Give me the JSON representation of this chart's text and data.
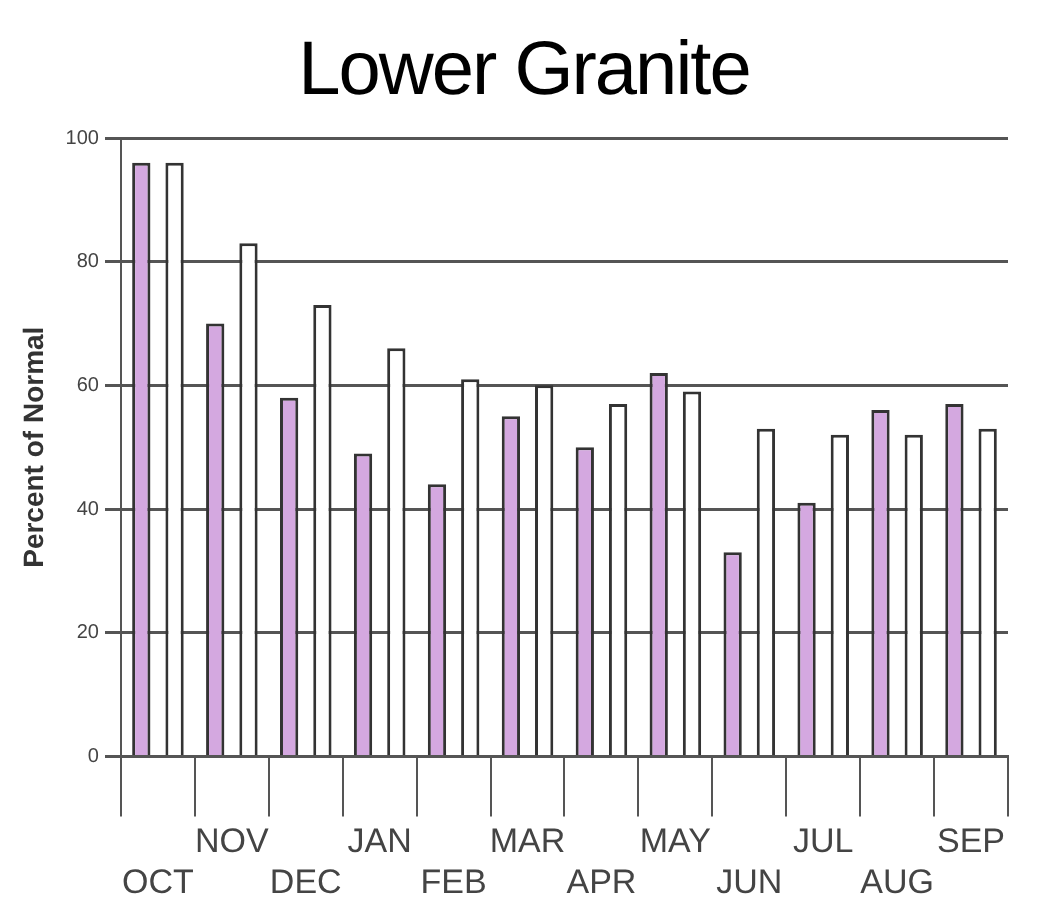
{
  "chart_data": {
    "type": "bar",
    "title": "Lower Granite",
    "ylabel": "Percent of Normal",
    "categories": [
      "OCT",
      "NOV",
      "DEC",
      "JAN",
      "FEB",
      "MAR",
      "APR",
      "MAY",
      "JUN",
      "JUL",
      "AUG",
      "SEP"
    ],
    "series": [
      {
        "color": "#d4a8e0",
        "values": [
          96,
          70,
          58,
          49,
          44,
          55,
          50,
          62,
          33,
          41,
          56,
          57
        ]
      },
      {
        "color": "#ffffff",
        "values": [
          96,
          83,
          73,
          66,
          61,
          60,
          57,
          59,
          53,
          52,
          52,
          53
        ]
      }
    ],
    "ylim": [
      0,
      100
    ],
    "yticks": [
      0,
      20,
      40,
      60,
      80,
      100
    ],
    "grid": "y",
    "legend": false
  }
}
